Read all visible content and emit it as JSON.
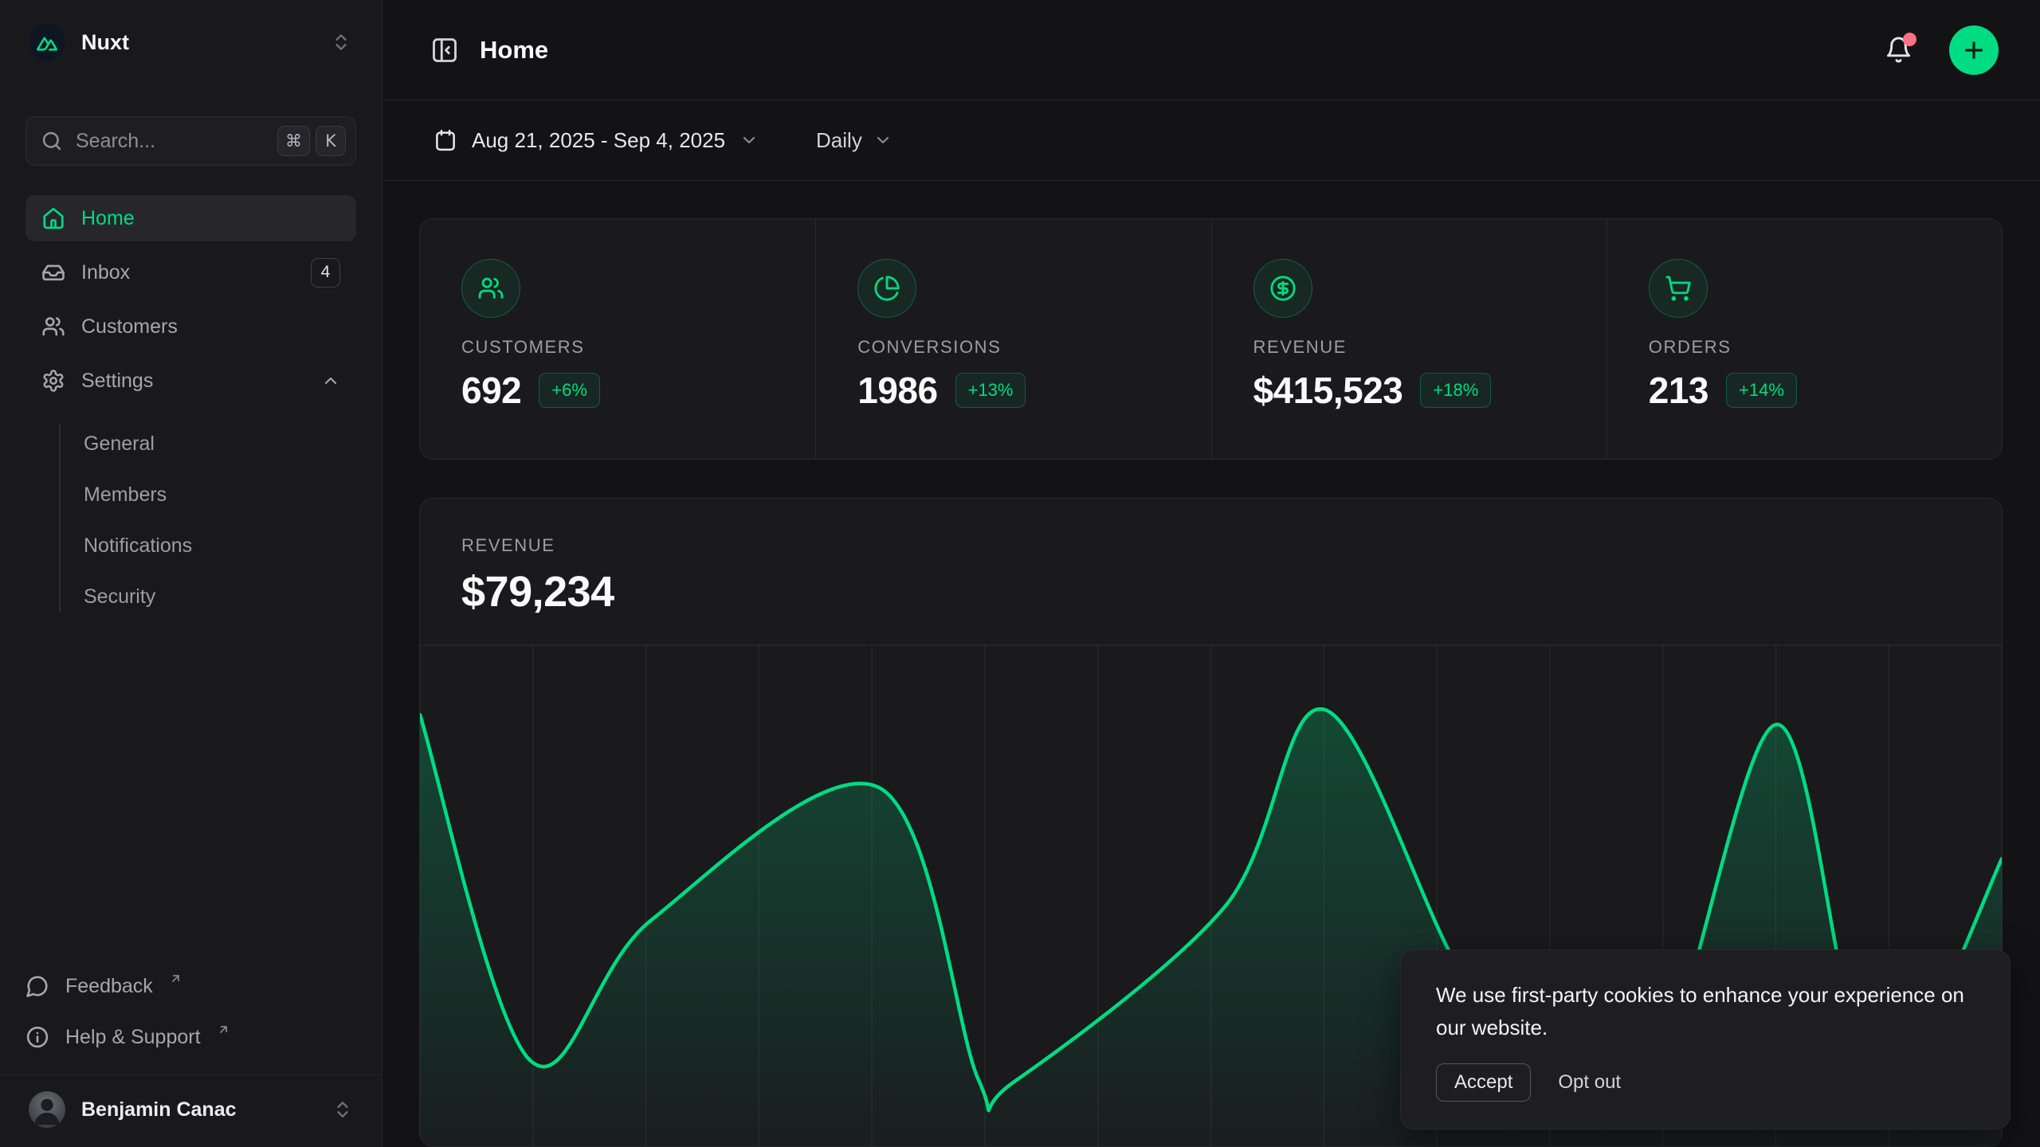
{
  "sidebar": {
    "workspace": {
      "name": "Nuxt"
    },
    "search": {
      "placeholder": "Search...",
      "shortcut_keys": [
        "⌘",
        "K"
      ]
    },
    "nav": [
      {
        "label": "Home",
        "active": true
      },
      {
        "label": "Inbox",
        "badge": "4"
      },
      {
        "label": "Customers"
      },
      {
        "label": "Settings",
        "expanded": true
      }
    ],
    "settings_children": [
      "General",
      "Members",
      "Notifications",
      "Security"
    ],
    "footer_links": [
      {
        "label": "Feedback",
        "external": true
      },
      {
        "label": "Help & Support",
        "external": true
      }
    ],
    "user": {
      "name": "Benjamin Canac"
    }
  },
  "header": {
    "title": "Home",
    "has_unread_notifications": true
  },
  "toolbar": {
    "date_range": "Aug 21, 2025 - Sep 4, 2025",
    "granularity": "Daily"
  },
  "stats": [
    {
      "label": "CUSTOMERS",
      "value": "692",
      "delta": "+6%",
      "icon": "users-icon"
    },
    {
      "label": "CONVERSIONS",
      "value": "1986",
      "delta": "+13%",
      "icon": "pie-chart-icon"
    },
    {
      "label": "REVENUE",
      "value": "$415,523",
      "delta": "+18%",
      "icon": "circle-dollar-icon"
    },
    {
      "label": "ORDERS",
      "value": "213",
      "delta": "+14%",
      "icon": "shopping-cart-icon"
    }
  ],
  "revenue_panel": {
    "label": "REVENUE",
    "value": "$79,234"
  },
  "chart_data": {
    "type": "area",
    "title": "REVENUE",
    "total_value": "$79,234",
    "x_range_label": "Aug 21, 2025 - Sep 4, 2025",
    "granularity": "Daily",
    "legend_visible": false,
    "axes_visible": false,
    "grid": {
      "vertical_lines": 15,
      "horizontal_top_line": true
    },
    "line_color": "#00dc82",
    "fill_gradient": [
      "rgba(0,220,130,0.24)",
      "rgba(0,220,130,0.02)"
    ],
    "points_pct": [
      [
        0,
        86
      ],
      [
        7,
        17
      ],
      [
        14.6,
        45
      ],
      [
        29,
        71.5
      ],
      [
        35.3,
        13.3
      ],
      [
        37.5,
        12.7
      ],
      [
        50.9,
        47.8
      ],
      [
        57.2,
        87
      ],
      [
        66,
        33.5
      ],
      [
        72.5,
        12.7
      ],
      [
        78.3,
        14.6
      ],
      [
        85.7,
        84
      ],
      [
        90.7,
        24
      ],
      [
        94.4,
        19.3
      ],
      [
        100,
        57.3
      ]
    ]
  },
  "cookie_banner": {
    "message": "We use first-party cookies to enhance your experience on our website.",
    "accept_label": "Accept",
    "opt_out_label": "Opt out"
  },
  "colors": {
    "accent": "#00dc82",
    "notification_dot": "#fb7185"
  }
}
